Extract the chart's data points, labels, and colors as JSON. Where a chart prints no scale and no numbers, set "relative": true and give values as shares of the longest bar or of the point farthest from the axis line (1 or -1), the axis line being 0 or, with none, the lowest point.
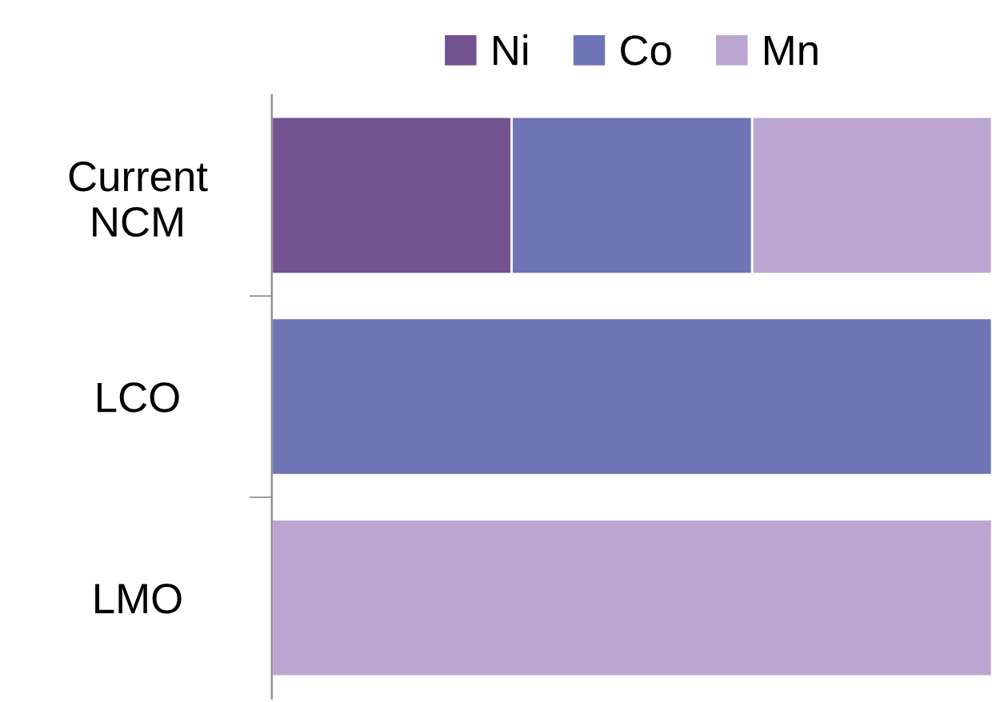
{
  "chart_data": {
    "type": "bar",
    "orientation": "horizontal",
    "stacked": true,
    "relative": true,
    "legend": "top",
    "grid": false,
    "categories": [
      "Current\nNCM",
      "LCO",
      "LMO"
    ],
    "series": [
      {
        "name": "Ni",
        "color": "#735290",
        "values": [
          0.333,
          null,
          null
        ]
      },
      {
        "name": "Co",
        "color": "#6e74b5",
        "values": [
          0.334,
          1,
          null
        ]
      },
      {
        "name": "Mn",
        "color": "#bba6d1",
        "values": [
          0.333,
          null,
          1
        ]
      }
    ]
  }
}
